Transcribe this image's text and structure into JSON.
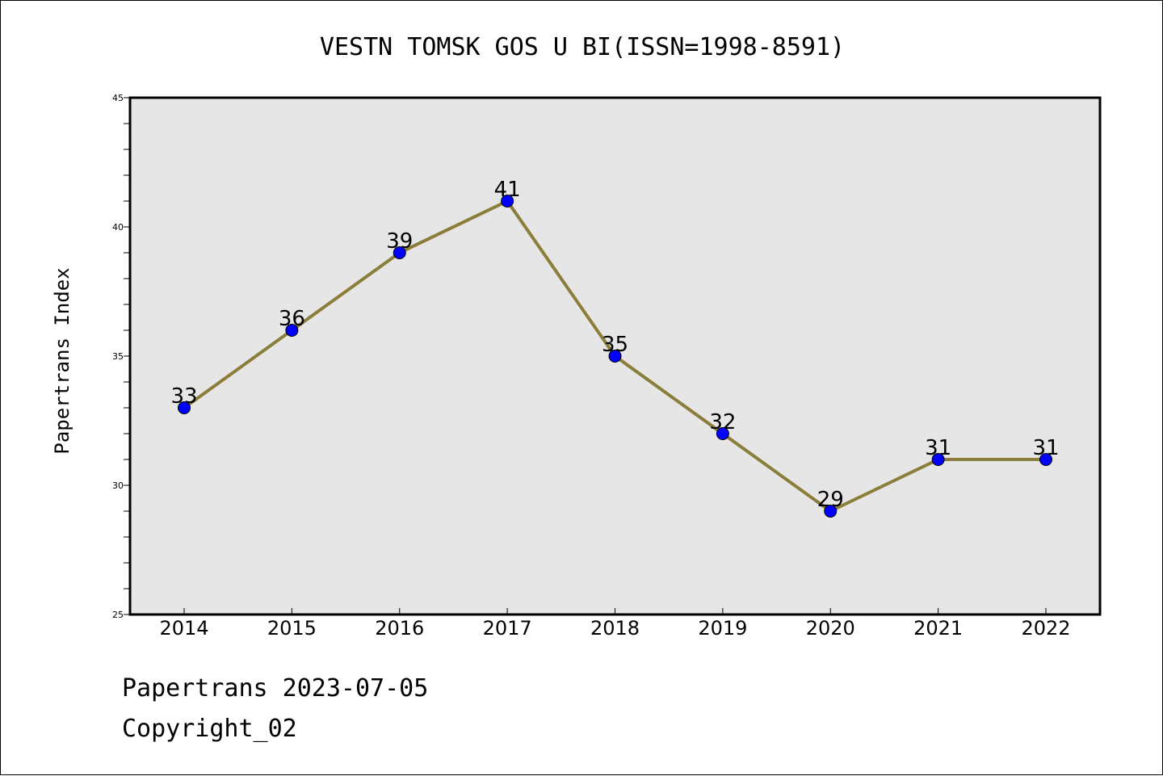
{
  "footer": {
    "date_line": "Papertrans 2023-07-05",
    "copyright": "Copyright_02"
  },
  "colors": {
    "plot_background": "#e6e6e6",
    "line": "#8b7d3a",
    "marker": "#0000ff"
  },
  "chart_data": {
    "type": "line",
    "title": "VESTN TOMSK GOS U BI(ISSN=1998-8591)",
    "xlabel": "",
    "ylabel": "Papertrans Index",
    "categories": [
      "2014",
      "2015",
      "2016",
      "2017",
      "2018",
      "2019",
      "2020",
      "2021",
      "2022"
    ],
    "values": [
      33,
      36,
      39,
      41,
      35,
      32,
      29,
      31,
      31
    ],
    "ylim": [
      25,
      45
    ],
    "yticks": [
      25,
      30,
      35,
      40,
      45
    ],
    "grid": false,
    "data_labels": true
  }
}
